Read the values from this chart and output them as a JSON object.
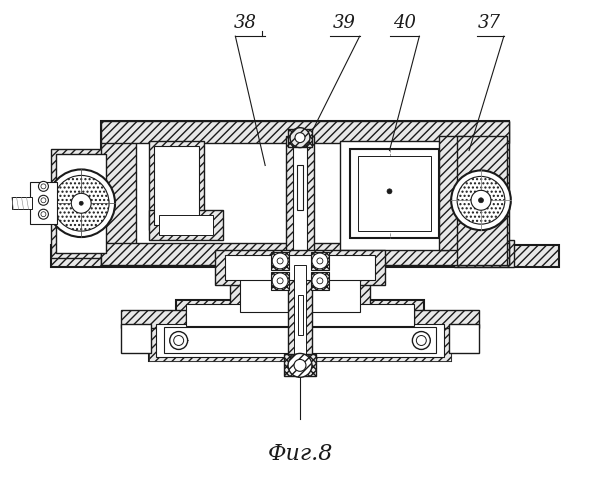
{
  "title": "Фиг.8",
  "labels": [
    "38",
    "39",
    "40",
    "37"
  ],
  "bg_color": "#ffffff",
  "line_color": "#1a1a1a",
  "hatch_color": "#555555",
  "fig_width": 6.0,
  "fig_height": 5.0
}
